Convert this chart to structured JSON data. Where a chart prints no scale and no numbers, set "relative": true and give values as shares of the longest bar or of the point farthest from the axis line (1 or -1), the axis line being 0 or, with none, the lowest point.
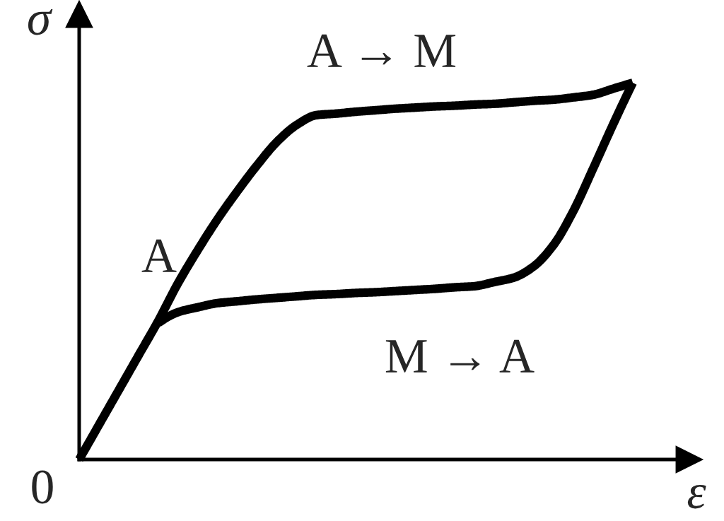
{
  "chart_data": {
    "type": "line",
    "relative": true,
    "xlabel": "ε",
    "ylabel": "σ",
    "categories": [
      null,
      null,
      null,
      null,
      null,
      null,
      null,
      null,
      null,
      null,
      null,
      null,
      null,
      null,
      null,
      null,
      null,
      null,
      null,
      null,
      null,
      null,
      null,
      null,
      null,
      null,
      null,
      null,
      null
    ],
    "series": [
      {
        "color": "#000000",
        "values": [
          0,
          0.092,
          0.184,
          0.276,
          0.368,
          0.468,
          0.556,
          0.638,
          0.712,
          0.781,
          0.843,
          0.888,
          0.914,
          0.918,
          0.923,
          0.927,
          0.931,
          0.934,
          0.937,
          0.939,
          0.942,
          0.944,
          0.948,
          0.952,
          0.955,
          0.961,
          0.968,
          0.984,
          1
        ]
      },
      {
        "color": "#000000",
        "values": [
          null,
          null,
          null,
          null,
          0.362,
          0.391,
          0.404,
          0.415,
          0.42,
          0.425,
          0.429,
          0.433,
          0.437,
          0.439,
          0.442,
          0.444,
          0.447,
          0.45,
          0.453,
          0.457,
          0.46,
          0.471,
          0.483,
          0.513,
          0.57,
          0.66,
          0.773,
          0.889,
          1
        ]
      }
    ],
    "annotations": [
      "A → M",
      "A",
      "M → A",
      "0"
    ],
    "grid": false,
    "legend": false
  }
}
